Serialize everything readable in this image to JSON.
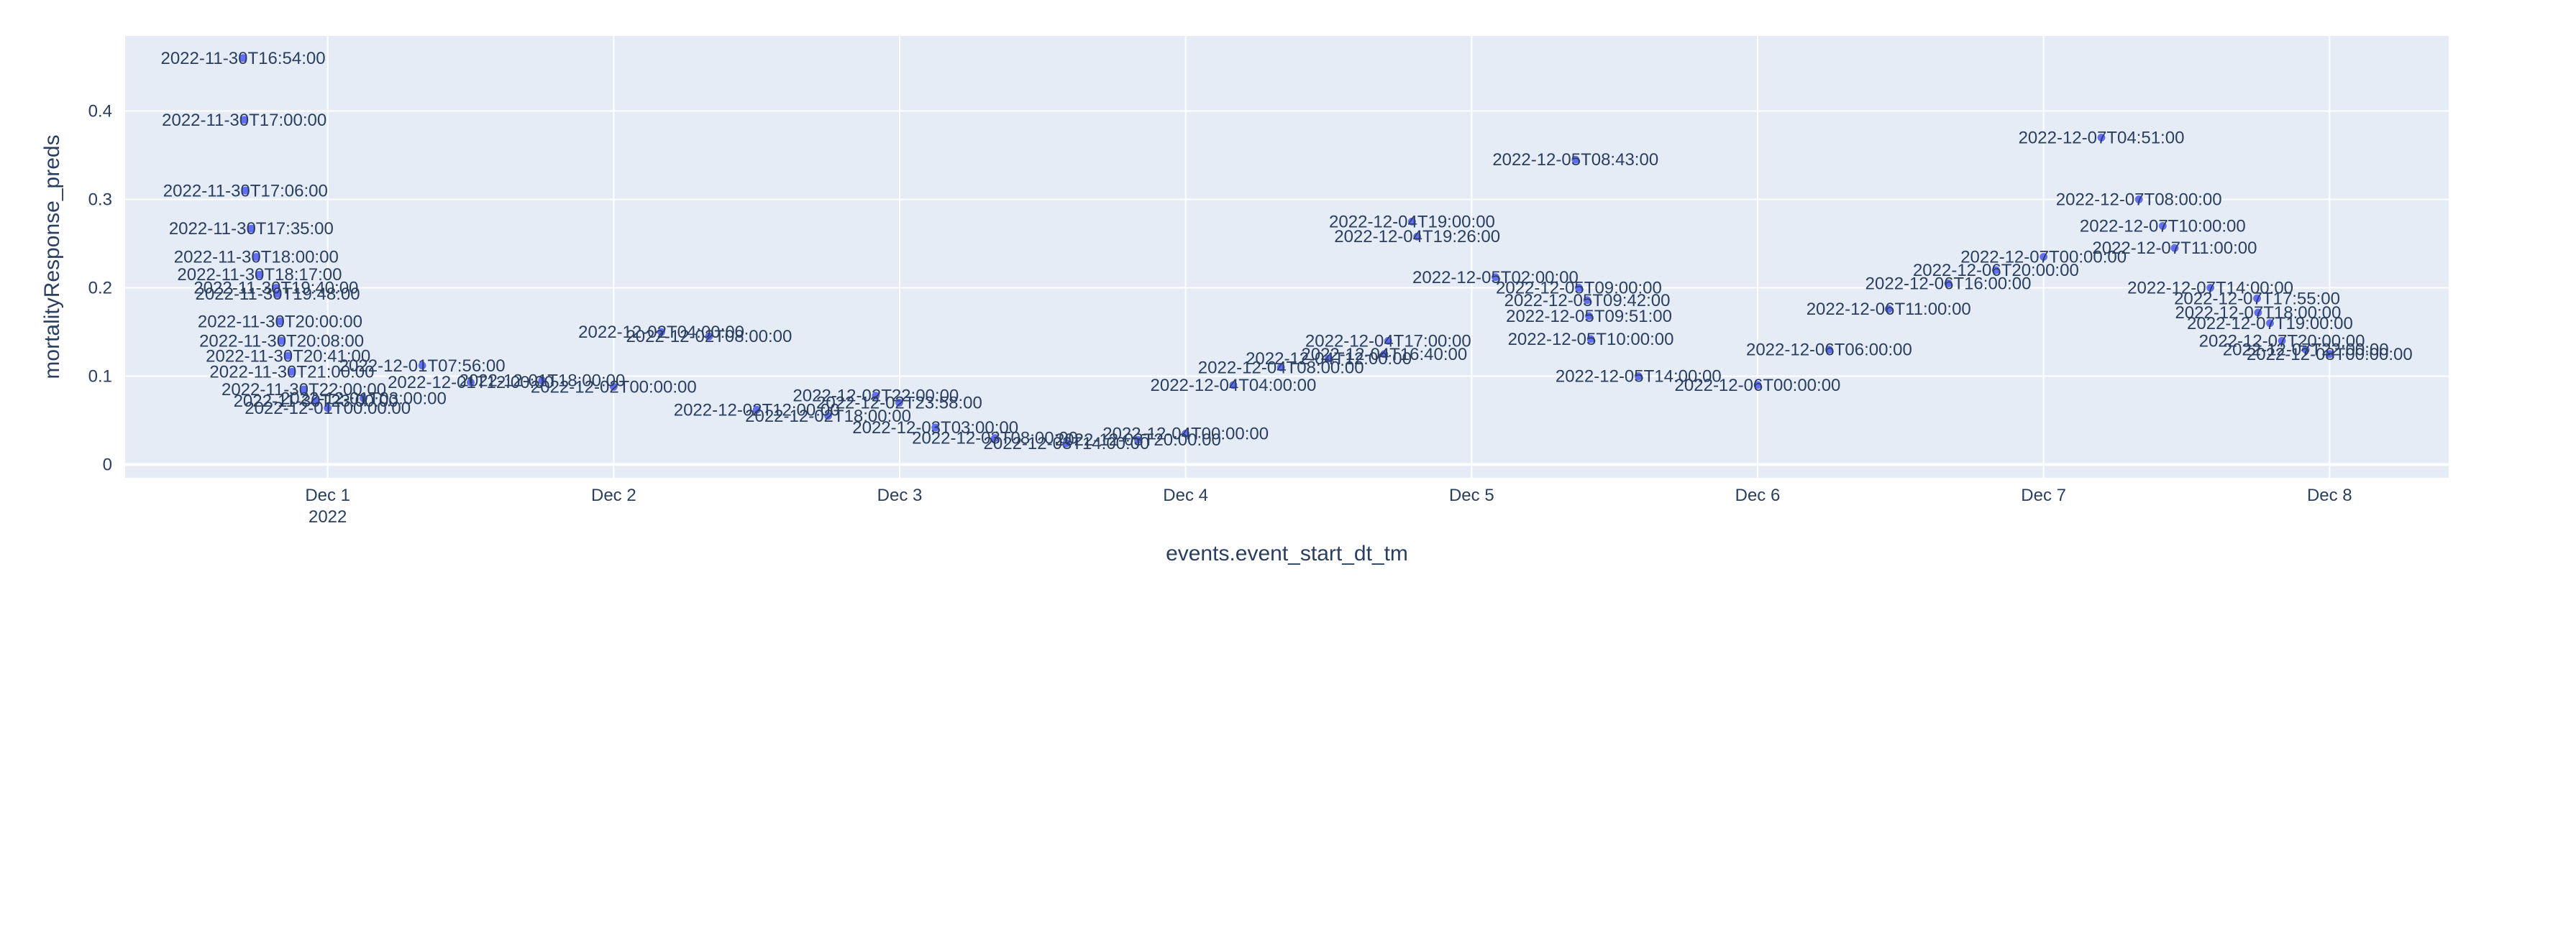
{
  "chart_data": {
    "type": "scatter",
    "xlabel": "events.event_start_dt_tm",
    "ylabel": "mortalityResponse_preds",
    "x_range": [
      "2022-11-30T07:00:00",
      "2022-12-08T10:00:00"
    ],
    "ylim": [
      -0.015,
      0.485
    ],
    "x_ticks": [
      {
        "date": "2022-12-01T00:00:00",
        "label": "Dec 1",
        "sublabel": "2022"
      },
      {
        "date": "2022-12-02T00:00:00",
        "label": "Dec 2",
        "sublabel": ""
      },
      {
        "date": "2022-12-03T00:00:00",
        "label": "Dec 3",
        "sublabel": ""
      },
      {
        "date": "2022-12-04T00:00:00",
        "label": "Dec 4",
        "sublabel": ""
      },
      {
        "date": "2022-12-05T00:00:00",
        "label": "Dec 5",
        "sublabel": ""
      },
      {
        "date": "2022-12-06T00:00:00",
        "label": "Dec 6",
        "sublabel": ""
      },
      {
        "date": "2022-12-07T00:00:00",
        "label": "Dec 7",
        "sublabel": ""
      },
      {
        "date": "2022-12-08T00:00:00",
        "label": "Dec 8",
        "sublabel": ""
      }
    ],
    "y_ticks": [
      {
        "value": 0,
        "label": "0"
      },
      {
        "value": 0.1,
        "label": "0.1"
      },
      {
        "value": 0.2,
        "label": "0.2"
      },
      {
        "value": 0.3,
        "label": "0.3"
      },
      {
        "value": 0.4,
        "label": "0.4"
      }
    ],
    "grid": true,
    "marker_color": "#636efa",
    "plot_bg": "#e5ecf6",
    "text_color": "#2a3f5f",
    "points": [
      {
        "x": "2022-11-30T16:54:00",
        "y": 0.46,
        "text": "2022-11-30T16:54:00"
      },
      {
        "x": "2022-11-30T17:00:00",
        "y": 0.39,
        "text": "2022-11-30T17:00:00"
      },
      {
        "x": "2022-11-30T17:06:00",
        "y": 0.31,
        "text": "2022-11-30T17:06:00"
      },
      {
        "x": "2022-11-30T17:35:00",
        "y": 0.267,
        "text": "2022-11-30T17:35:00"
      },
      {
        "x": "2022-11-30T18:00:00",
        "y": 0.235,
        "text": "2022-11-30T18:00:00"
      },
      {
        "x": "2022-11-30T18:17:00",
        "y": 0.215,
        "text": "2022-11-30T18:17:00"
      },
      {
        "x": "2022-11-30T19:40:00",
        "y": 0.2,
        "text": "2022-11-30T19:40:00"
      },
      {
        "x": "2022-11-30T19:48:00",
        "y": 0.193,
        "text": "2022-11-30T19:48:00"
      },
      {
        "x": "2022-11-30T20:00:00",
        "y": 0.162,
        "text": "2022-11-30T20:00:00"
      },
      {
        "x": "2022-11-30T20:08:00",
        "y": 0.14,
        "text": "2022-11-30T20:08:00"
      },
      {
        "x": "2022-11-30T20:41:00",
        "y": 0.123,
        "text": "2022-11-30T20:41:00"
      },
      {
        "x": "2022-11-30T21:00:00",
        "y": 0.105,
        "text": "2022-11-30T21:00:00"
      },
      {
        "x": "2022-11-30T22:00:00",
        "y": 0.085,
        "text": "2022-11-30T22:00:00"
      },
      {
        "x": "2022-11-30T23:00:00",
        "y": 0.072,
        "text": "2022-11-30T23:00:00"
      },
      {
        "x": "2022-12-01T00:00:00",
        "y": 0.064,
        "text": "2022-12-01T00:00:00"
      },
      {
        "x": "2022-12-01T03:00:00",
        "y": 0.075,
        "text": "2022-12-01T03:00:00"
      },
      {
        "x": "2022-12-01T07:56:00",
        "y": 0.112,
        "text": "2022-12-01T07:56:00"
      },
      {
        "x": "2022-12-01T12:00:00",
        "y": 0.093,
        "text": "2022-12-01T12:00:00"
      },
      {
        "x": "2022-12-01T18:00:00",
        "y": 0.095,
        "text": "2022-12-01T18:00:00"
      },
      {
        "x": "2022-12-02T00:00:00",
        "y": 0.088,
        "text": "2022-12-02T00:00:00"
      },
      {
        "x": "2022-12-02T04:00:00",
        "y": 0.15,
        "text": "2022-12-02T04:00:00"
      },
      {
        "x": "2022-12-02T08:00:00",
        "y": 0.145,
        "text": "2022-12-02T08:00:00"
      },
      {
        "x": "2022-12-02T12:00:00",
        "y": 0.062,
        "text": "2022-12-02T12:00:00"
      },
      {
        "x": "2022-12-02T18:00:00",
        "y": 0.055,
        "text": "2022-12-02T18:00:00"
      },
      {
        "x": "2022-12-02T22:00:00",
        "y": 0.078,
        "text": "2022-12-02T22:00:00"
      },
      {
        "x": "2022-12-02T23:58:00",
        "y": 0.07,
        "text": "2022-12-02T23:58:00"
      },
      {
        "x": "2022-12-03T03:00:00",
        "y": 0.042,
        "text": "2022-12-03T03:00:00"
      },
      {
        "x": "2022-12-03T08:00:00",
        "y": 0.03,
        "text": "2022-12-03T08:00:00"
      },
      {
        "x": "2022-12-03T14:00:00",
        "y": 0.024,
        "text": "2022-12-03T14:00:00"
      },
      {
        "x": "2022-12-03T20:00:00",
        "y": 0.028,
        "text": "2022-12-03T20:00:00"
      },
      {
        "x": "2022-12-04T00:00:00",
        "y": 0.035,
        "text": "2022-12-04T00:00:00"
      },
      {
        "x": "2022-12-04T04:00:00",
        "y": 0.09,
        "text": "2022-12-04T04:00:00"
      },
      {
        "x": "2022-12-04T08:00:00",
        "y": 0.11,
        "text": "2022-12-04T08:00:00"
      },
      {
        "x": "2022-12-04T12:00:00",
        "y": 0.12,
        "text": "2022-12-04T12:00:00"
      },
      {
        "x": "2022-12-04T16:40:00",
        "y": 0.125,
        "text": "2022-12-04T16:40:00"
      },
      {
        "x": "2022-12-04T17:00:00",
        "y": 0.14,
        "text": "2022-12-04T17:00:00"
      },
      {
        "x": "2022-12-04T19:00:00",
        "y": 0.275,
        "text": "2022-12-04T19:00:00"
      },
      {
        "x": "2022-12-04T19:26:00",
        "y": 0.258,
        "text": "2022-12-04T19:26:00"
      },
      {
        "x": "2022-12-05T02:00:00",
        "y": 0.212,
        "text": "2022-12-05T02:00:00"
      },
      {
        "x": "2022-12-05T09:00:00",
        "y": 0.2,
        "text": "2022-12-05T09:00:00"
      },
      {
        "x": "2022-12-05T09:42:00",
        "y": 0.186,
        "text": "2022-12-05T09:42:00"
      },
      {
        "x": "2022-12-05T09:51:00",
        "y": 0.168,
        "text": "2022-12-05T09:51:00"
      },
      {
        "x": "2022-12-05T10:00:00",
        "y": 0.142,
        "text": "2022-12-05T10:00:00"
      },
      {
        "x": "2022-12-05T08:43:00",
        "y": 0.345,
        "text": "2022-12-05T08:43:00"
      },
      {
        "x": "2022-12-05T14:00:00",
        "y": 0.1,
        "text": "2022-12-05T14:00:00"
      },
      {
        "x": "2022-12-06T00:00:00",
        "y": 0.09,
        "text": "2022-12-06T00:00:00"
      },
      {
        "x": "2022-12-06T06:00:00",
        "y": 0.13,
        "text": "2022-12-06T06:00:00"
      },
      {
        "x": "2022-12-06T11:00:00",
        "y": 0.176,
        "text": "2022-12-06T11:00:00"
      },
      {
        "x": "2022-12-06T16:00:00",
        "y": 0.205,
        "text": "2022-12-06T16:00:00"
      },
      {
        "x": "2022-12-06T20:00:00",
        "y": 0.22,
        "text": "2022-12-06T20:00:00"
      },
      {
        "x": "2022-12-07T00:00:00",
        "y": 0.235,
        "text": "2022-12-07T00:00:00"
      },
      {
        "x": "2022-12-07T04:51:00",
        "y": 0.37,
        "text": "2022-12-07T04:51:00"
      },
      {
        "x": "2022-12-07T08:00:00",
        "y": 0.3,
        "text": "2022-12-07T08:00:00"
      },
      {
        "x": "2022-12-07T10:00:00",
        "y": 0.27,
        "text": "2022-12-07T10:00:00"
      },
      {
        "x": "2022-12-07T11:00:00",
        "y": 0.245,
        "text": "2022-12-07T11:00:00"
      },
      {
        "x": "2022-12-07T14:00:00",
        "y": 0.2,
        "text": "2022-12-07T14:00:00"
      },
      {
        "x": "2022-12-07T17:55:00",
        "y": 0.188,
        "text": "2022-12-07T17:55:00"
      },
      {
        "x": "2022-12-07T18:00:00",
        "y": 0.172,
        "text": "2022-12-07T18:00:00"
      },
      {
        "x": "2022-12-07T19:00:00",
        "y": 0.16,
        "text": "2022-12-07T19:00:00"
      },
      {
        "x": "2022-12-07T20:00:00",
        "y": 0.14,
        "text": "2022-12-07T20:00:00"
      },
      {
        "x": "2022-12-07T22:00:00",
        "y": 0.13,
        "text": "2022-12-07T22:00:00"
      },
      {
        "x": "2022-12-08T00:00:00",
        "y": 0.125,
        "text": "2022-12-08T00:00:00"
      }
    ]
  }
}
